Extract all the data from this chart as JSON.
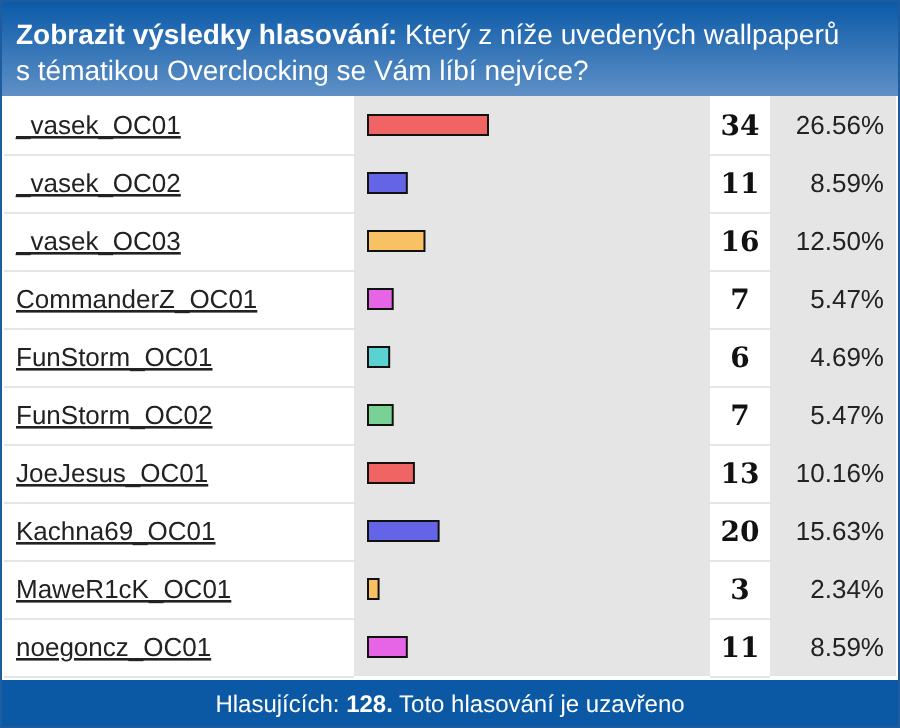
{
  "chart_data": {
    "type": "bar",
    "orientation": "horizontal",
    "title": "Zobrazit výsledky hlasování:",
    "subtitle": "Který z níže uvedených wallpaperů s tématikou Overclocking se Vám líbí nejvíce?",
    "categories": [
      "_vasek_OC01",
      "_vasek_OC02",
      "_vasek_OC03",
      "CommanderZ_OC01",
      "FunStorm_OC01",
      "FunStorm_OC02",
      "JoeJesus_OC01",
      "Kachna69_OC01",
      "MaweR1cK_OC01",
      "noegoncz_OC01"
    ],
    "values": [
      26.56,
      8.59,
      12.5,
      5.47,
      4.69,
      5.47,
      10.16,
      15.63,
      2.34,
      8.59
    ],
    "colors": [
      "#f06464",
      "#6464e6",
      "#f8c264",
      "#e664e6",
      "#5ad2d2",
      "#78d296",
      "#f06464",
      "#6464e6",
      "#f8c264",
      "#e664e6"
    ],
    "value_labels": [
      "26.56%",
      "8.59%",
      "12.50%",
      "5.47%",
      "4.69%",
      "5.47%",
      "10.16%",
      "15.63%",
      "2.34%",
      "8.59%"
    ],
    "annotations": [
      "34",
      "11",
      "16",
      "7",
      "6",
      "7",
      "13",
      "20",
      "3",
      "11",
      "Hlasujících: 128. Toto hlasování je uzavřeno"
    ]
  }
}
